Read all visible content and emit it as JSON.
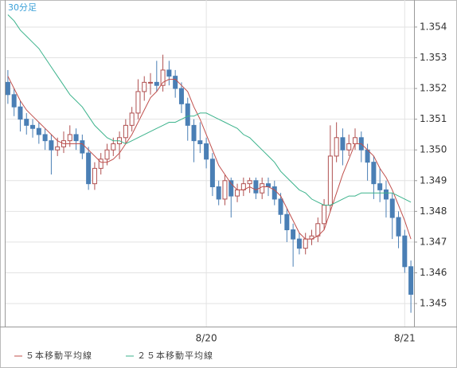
{
  "chart_data": {
    "type": "candlestick",
    "title": "30分足",
    "categories": [
      null,
      null,
      null,
      null,
      null,
      null,
      null,
      null,
      null,
      null,
      null,
      null,
      null,
      null,
      null,
      null,
      null,
      null,
      null,
      null,
      null,
      null,
      null,
      null,
      null,
      null,
      null,
      null,
      null,
      null,
      null,
      null,
      "8/20",
      null,
      null,
      null,
      null,
      null,
      null,
      null,
      null,
      null,
      null,
      null,
      null,
      null,
      null,
      null,
      null,
      null,
      null,
      null,
      null,
      null,
      null,
      null,
      null,
      null,
      null,
      null,
      null,
      null,
      null,
      null,
      "8/21",
      null
    ],
    "ohlc": [
      [
        1.3522,
        1.3526,
        1.3515,
        1.3518
      ],
      [
        1.3518,
        1.352,
        1.3511,
        1.3514
      ],
      [
        1.3514,
        1.3516,
        1.3506,
        1.351
      ],
      [
        1.351,
        1.3512,
        1.3505,
        1.3508
      ],
      [
        1.3508,
        1.351,
        1.3504,
        1.3507
      ],
      [
        1.3507,
        1.3509,
        1.3502,
        1.3505
      ],
      [
        1.3505,
        1.3507,
        1.35,
        1.3503
      ],
      [
        1.3503,
        1.3505,
        1.3492,
        1.35
      ],
      [
        1.35,
        1.3504,
        1.3498,
        1.3501
      ],
      [
        1.3501,
        1.3506,
        1.3499,
        1.3503
      ],
      [
        1.3503,
        1.3508,
        1.3501,
        1.3505
      ],
      [
        1.3505,
        1.3507,
        1.35,
        1.3503
      ],
      [
        1.3503,
        1.3505,
        1.3497,
        1.3499
      ],
      [
        1.3499,
        1.3501,
        1.3487,
        1.3489
      ],
      [
        1.3489,
        1.3496,
        1.3487,
        1.3494
      ],
      [
        1.3494,
        1.3499,
        1.3492,
        1.3497
      ],
      [
        1.3497,
        1.3502,
        1.3495,
        1.35
      ],
      [
        1.35,
        1.3504,
        1.3498,
        1.3502
      ],
      [
        1.3502,
        1.3506,
        1.3497,
        1.3504
      ],
      [
        1.3504,
        1.351,
        1.3502,
        1.3508
      ],
      [
        1.3508,
        1.3514,
        1.3506,
        1.3512
      ],
      [
        1.3512,
        1.3523,
        1.351,
        1.3519
      ],
      [
        1.3519,
        1.3524,
        1.3516,
        1.3522
      ],
      [
        1.3522,
        1.3525,
        1.3518,
        1.3522
      ],
      [
        1.3522,
        1.3529,
        1.3519,
        1.3521
      ],
      [
        1.3521,
        1.3531,
        1.3519,
        1.3526
      ],
      [
        1.3526,
        1.3529,
        1.3521,
        1.3524
      ],
      [
        1.3524,
        1.3526,
        1.3517,
        1.352
      ],
      [
        1.352,
        1.3522,
        1.3512,
        1.3515
      ],
      [
        1.3515,
        1.3517,
        1.3503,
        1.3508
      ],
      [
        1.3508,
        1.351,
        1.3496,
        1.3503
      ],
      [
        1.3503,
        1.3509,
        1.3499,
        1.3502
      ],
      [
        1.3502,
        1.3504,
        1.3494,
        1.3497
      ],
      [
        1.3497,
        1.3499,
        1.3485,
        1.3488
      ],
      [
        1.3488,
        1.349,
        1.3482,
        1.3484
      ],
      [
        1.3484,
        1.3492,
        1.3482,
        1.349
      ],
      [
        1.349,
        1.3491,
        1.3478,
        1.3485
      ],
      [
        1.3485,
        1.3489,
        1.3483,
        1.3487
      ],
      [
        1.3487,
        1.3491,
        1.3485,
        1.3489
      ],
      [
        1.3489,
        1.3491,
        1.3486,
        1.349
      ],
      [
        1.349,
        1.3491,
        1.3484,
        1.3486
      ],
      [
        1.3486,
        1.3491,
        1.3484,
        1.3489
      ],
      [
        1.3489,
        1.3491,
        1.3485,
        1.3488
      ],
      [
        1.3488,
        1.349,
        1.3482,
        1.3484
      ],
      [
        1.3484,
        1.3486,
        1.3476,
        1.3479
      ],
      [
        1.3479,
        1.3481,
        1.347,
        1.3474
      ],
      [
        1.3474,
        1.3476,
        1.3462,
        1.3471
      ],
      [
        1.3471,
        1.3473,
        1.3466,
        1.3468
      ],
      [
        1.3468,
        1.3473,
        1.3466,
        1.3471
      ],
      [
        1.3471,
        1.3474,
        1.3469,
        1.3472
      ],
      [
        1.3472,
        1.3478,
        1.347,
        1.3476
      ],
      [
        1.3476,
        1.3484,
        1.3474,
        1.3482
      ],
      [
        1.3482,
        1.3508,
        1.348,
        1.3498
      ],
      [
        1.3498,
        1.3509,
        1.3496,
        1.3504
      ],
      [
        1.3504,
        1.3507,
        1.3495,
        1.35
      ],
      [
        1.35,
        1.3505,
        1.3498,
        1.3502
      ],
      [
        1.3502,
        1.3507,
        1.35,
        1.3504
      ],
      [
        1.3504,
        1.3506,
        1.3496,
        1.35
      ],
      [
        1.35,
        1.3502,
        1.349,
        1.3496
      ],
      [
        1.3496,
        1.3498,
        1.3484,
        1.3489
      ],
      [
        1.3489,
        1.3494,
        1.3483,
        1.3487
      ],
      [
        1.3487,
        1.349,
        1.3478,
        1.3484
      ],
      [
        1.3484,
        1.3486,
        1.3471,
        1.3478
      ],
      [
        1.3478,
        1.348,
        1.3468,
        1.3472
      ],
      [
        1.3472,
        1.3474,
        1.346,
        1.3462
      ],
      [
        1.3462,
        1.3464,
        1.3447,
        1.3453
      ]
    ],
    "up_color": "#b05050",
    "down_color": "#4a7fb5",
    "series": [
      {
        "name": "５本移動平均線",
        "color": "#c0504d",
        "values": [
          1.3524,
          1.352,
          1.3516,
          1.3513,
          1.3511,
          1.3509,
          1.3507,
          1.3505,
          1.3503,
          1.3502,
          1.3502,
          1.3502,
          1.3502,
          1.35,
          1.3498,
          1.3496,
          1.3496,
          1.3497,
          1.3499,
          1.3502,
          1.3505,
          1.3509,
          1.3513,
          1.3517,
          1.3519,
          1.3522,
          1.3523,
          1.3523,
          1.3521,
          1.3519,
          1.3514,
          1.351,
          1.3505,
          1.35,
          1.3495,
          1.3492,
          1.3489,
          1.3487,
          1.3487,
          1.3488,
          1.3487,
          1.3488,
          1.3488,
          1.3487,
          1.3485,
          1.3481,
          1.3477,
          1.3473,
          1.3471,
          1.3471,
          1.3472,
          1.3474,
          1.348,
          1.3486,
          1.3492,
          1.3497,
          1.3502,
          1.3502,
          1.35,
          1.3498,
          1.3494,
          1.3491,
          1.3487,
          1.3482,
          1.3477,
          1.3471
        ]
      },
      {
        "name": "２５本移動平均線",
        "color": "#3cb38c",
        "values": [
          1.3544,
          1.3542,
          1.3539,
          1.3537,
          1.3535,
          1.3533,
          1.353,
          1.3527,
          1.3524,
          1.3521,
          1.3518,
          1.3516,
          1.3514,
          1.3511,
          1.3508,
          1.3506,
          1.3504,
          1.3503,
          1.3503,
          1.3502,
          1.3503,
          1.3504,
          1.3505,
          1.3506,
          1.3507,
          1.3508,
          1.3509,
          1.3509,
          1.351,
          1.3511,
          1.3511,
          1.3512,
          1.3512,
          1.3511,
          1.351,
          1.3509,
          1.3508,
          1.3507,
          1.3505,
          1.3504,
          1.3502,
          1.35,
          1.3498,
          1.3496,
          1.3493,
          1.3491,
          1.3489,
          1.3487,
          1.3486,
          1.3484,
          1.3483,
          1.3482,
          1.3482,
          1.3483,
          1.3484,
          1.3485,
          1.3485,
          1.3486,
          1.3486,
          1.3486,
          1.3486,
          1.3486,
          1.3486,
          1.3485,
          1.3484,
          1.3483
        ]
      }
    ],
    "ylim": [
      1.34425,
      1.35488
    ],
    "yticks": [
      1.345,
      1.346,
      1.347,
      1.348,
      1.349,
      {
        "value": 1.35,
        "label": "1.350"
      },
      1.351,
      1.352,
      1.353,
      1.354
    ],
    "grid": true
  }
}
